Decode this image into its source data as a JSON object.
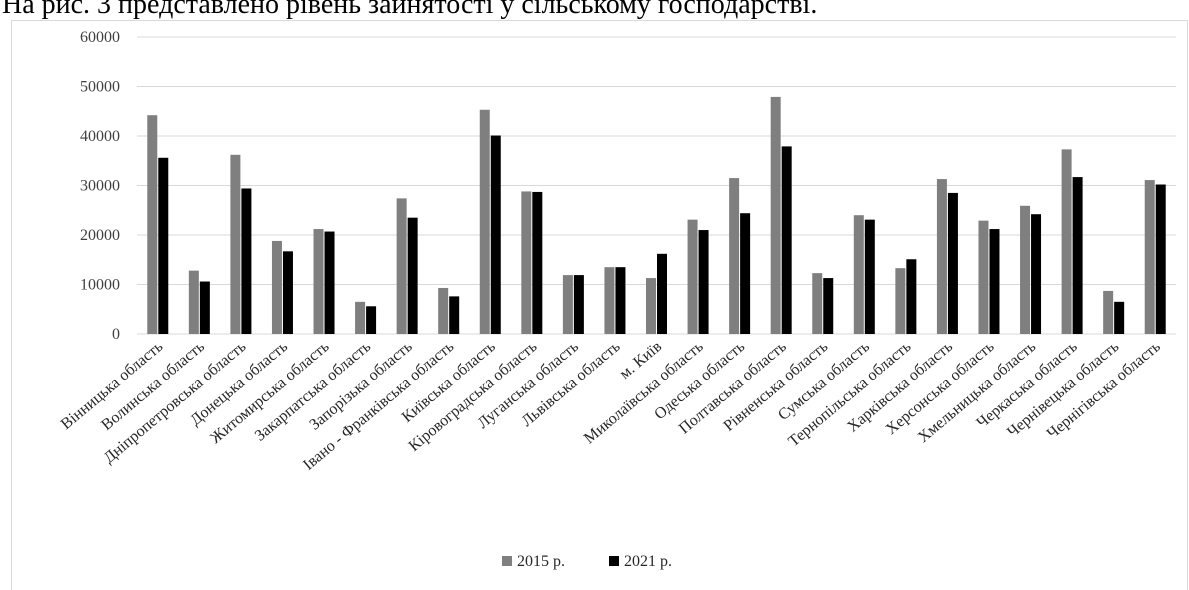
{
  "heading": "На рис. 3 представлено рівень зайнятості у сільському господарстві.",
  "colors": {
    "series_2015": "#7f7f7f",
    "series_2021": "#000000",
    "grid": "#d9d9d9",
    "axis": "#d9d9d9"
  },
  "chart_data": {
    "type": "bar",
    "title": "",
    "xlabel": "",
    "ylabel": "",
    "ylim": [
      0,
      60000
    ],
    "yticks": [
      "0",
      "10000",
      "20000",
      "30000",
      "40000",
      "50000",
      "60000"
    ],
    "grid": true,
    "legend_position": "bottom",
    "categories": [
      "Вінницька область",
      "Волинська область",
      "Дніпропетровська область",
      "Донецька область",
      "Житомирська область",
      "Закарпатська область",
      "Запорізька область",
      "Івано - Франківська область",
      "Київська область",
      "Кіровоградська область",
      "Луганська область",
      "Львівська область",
      "м. Київ",
      "Миколаївська область",
      "Одеська область",
      "Полтавська область",
      "Рівненська область",
      "Сумська область",
      "Тернопільська область",
      "Харківська область",
      "Херсонська область",
      "Хмельницька область",
      "Черкаська область",
      "Чернівецька область",
      "Чернігівська область"
    ],
    "series": [
      {
        "name": "2015 р.",
        "values": [
          44200,
          12800,
          36200,
          18800,
          21200,
          6500,
          27400,
          9300,
          45300,
          28800,
          11900,
          13500,
          11300,
          23100,
          31500,
          47900,
          12300,
          24000,
          13300,
          31300,
          22900,
          25900,
          37300,
          8700,
          31100
        ]
      },
      {
        "name": "2021 р.",
        "values": [
          35600,
          10600,
          29400,
          16700,
          20700,
          5600,
          23500,
          7600,
          40100,
          28700,
          11900,
          13500,
          16200,
          21000,
          24400,
          37900,
          11300,
          23100,
          15100,
          28500,
          21200,
          24200,
          31700,
          6500,
          30200
        ]
      }
    ]
  }
}
